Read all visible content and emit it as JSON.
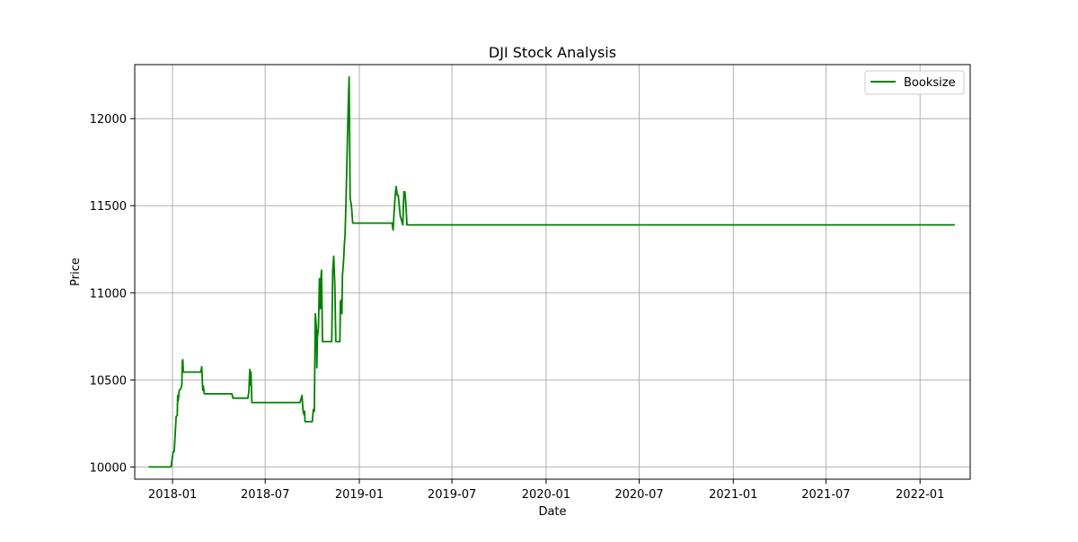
{
  "chart_data": {
    "type": "line",
    "title": "DJI Stock Analysis",
    "xlabel": "Date",
    "ylabel": "Price",
    "grid": true,
    "legend_position": "top-right",
    "x_type": "date",
    "xlim": [
      "2017-10-19",
      "2022-04-09"
    ],
    "ylim": [
      9930,
      12310
    ],
    "x_ticks": [
      "2018-01",
      "2018-07",
      "2019-01",
      "2019-07",
      "2020-01",
      "2020-07",
      "2021-01",
      "2021-07",
      "2022-01"
    ],
    "y_ticks": [
      10000,
      10500,
      11000,
      11500,
      12000
    ],
    "series": [
      {
        "name": "Booksize",
        "color": "#008000",
        "points": [
          [
            "2017-11-15",
            10000
          ],
          [
            "2017-12-29",
            10000
          ],
          [
            "2018-01-02",
            10085
          ],
          [
            "2018-01-04",
            10090
          ],
          [
            "2018-01-05",
            10130
          ],
          [
            "2018-01-08",
            10290
          ],
          [
            "2018-01-10",
            10295
          ],
          [
            "2018-01-11",
            10410
          ],
          [
            "2018-01-12",
            10380
          ],
          [
            "2018-01-14",
            10440
          ],
          [
            "2018-01-17",
            10450
          ],
          [
            "2018-01-19",
            10470
          ],
          [
            "2018-01-20",
            10610
          ],
          [
            "2018-01-21",
            10615
          ],
          [
            "2018-01-22",
            10545
          ],
          [
            "2018-01-24",
            10545
          ],
          [
            "2018-02-25",
            10545
          ],
          [
            "2018-02-27",
            10575
          ],
          [
            "2018-03-01",
            10440
          ],
          [
            "2018-03-02",
            10465
          ],
          [
            "2018-03-04",
            10420
          ],
          [
            "2018-04-27",
            10420
          ],
          [
            "2018-04-29",
            10395
          ],
          [
            "2018-05-28",
            10395
          ],
          [
            "2018-05-30",
            10430
          ],
          [
            "2018-06-01",
            10560
          ],
          [
            "2018-06-02",
            10470
          ],
          [
            "2018-06-03",
            10545
          ],
          [
            "2018-06-05",
            10370
          ],
          [
            "2018-06-07",
            10370
          ],
          [
            "2018-09-07",
            10370
          ],
          [
            "2018-09-09",
            10390
          ],
          [
            "2018-09-11",
            10410
          ],
          [
            "2018-09-13",
            10320
          ],
          [
            "2018-09-15",
            10300
          ],
          [
            "2018-09-16",
            10320
          ],
          [
            "2018-09-17",
            10260
          ],
          [
            "2018-10-01",
            10260
          ],
          [
            "2018-10-03",
            10330
          ],
          [
            "2018-10-05",
            10320
          ],
          [
            "2018-10-07",
            10880
          ],
          [
            "2018-10-09",
            10800
          ],
          [
            "2018-10-10",
            10570
          ],
          [
            "2018-10-11",
            10740
          ],
          [
            "2018-10-13",
            10800
          ],
          [
            "2018-10-15",
            11080
          ],
          [
            "2018-10-17",
            10910
          ],
          [
            "2018-10-18",
            11090
          ],
          [
            "2018-10-19",
            11130
          ],
          [
            "2018-10-21",
            10720
          ],
          [
            "2018-11-08",
            10720
          ],
          [
            "2018-11-10",
            11130
          ],
          [
            "2018-11-12",
            11210
          ],
          [
            "2018-11-14",
            11050
          ],
          [
            "2018-11-16",
            10720
          ],
          [
            "2018-11-24",
            10720
          ],
          [
            "2018-11-25",
            10950
          ],
          [
            "2018-11-27",
            10960
          ],
          [
            "2018-11-28",
            10880
          ],
          [
            "2018-11-29",
            11100
          ],
          [
            "2018-12-01",
            11180
          ],
          [
            "2018-12-03",
            11290
          ],
          [
            "2018-12-04",
            11330
          ],
          [
            "2018-12-06",
            11530
          ],
          [
            "2018-12-08",
            11780
          ],
          [
            "2018-12-10",
            12040
          ],
          [
            "2018-12-12",
            12240
          ],
          [
            "2018-12-14",
            11540
          ],
          [
            "2018-12-16",
            11510
          ],
          [
            "2018-12-17",
            11480
          ],
          [
            "2018-12-19",
            11400
          ],
          [
            "2019-03-06",
            11400
          ],
          [
            "2019-03-08",
            11360
          ],
          [
            "2019-03-10",
            11460
          ],
          [
            "2019-03-12",
            11560
          ],
          [
            "2019-03-14",
            11610
          ],
          [
            "2019-03-16",
            11560
          ],
          [
            "2019-03-18",
            11560
          ],
          [
            "2019-03-20",
            11500
          ],
          [
            "2019-03-22",
            11440
          ],
          [
            "2019-03-25",
            11410
          ],
          [
            "2019-03-27",
            11390
          ],
          [
            "2019-03-29",
            11580
          ],
          [
            "2019-03-31",
            11580
          ],
          [
            "2019-04-02",
            11510
          ],
          [
            "2019-04-04",
            11390
          ],
          [
            "2022-03-10",
            11390
          ]
        ]
      }
    ]
  }
}
